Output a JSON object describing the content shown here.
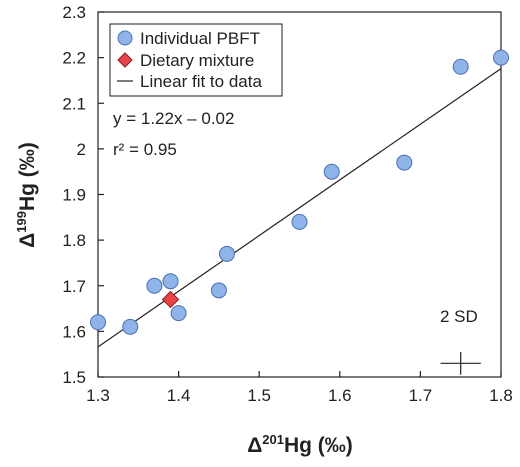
{
  "chart_data": {
    "type": "scatter",
    "xlabel": {
      "prefix": "Δ",
      "sup": "201",
      "rest": "Hg (‰)"
    },
    "ylabel": {
      "prefix": "Δ",
      "sup": "199",
      "rest": "Hg (‰)"
    },
    "xlim": [
      1.3,
      1.8
    ],
    "ylim": [
      1.5,
      2.3
    ],
    "xticks": [
      "1.3",
      "1.4",
      "1.5",
      "1.6",
      "1.7",
      "1.8"
    ],
    "yticks": [
      "1.5",
      "1.6",
      "1.7",
      "1.8",
      "1.9",
      "2",
      "2.1",
      "2.2",
      "2.3"
    ],
    "grid": false,
    "legend_position": "top-left",
    "series": [
      {
        "name": "Individual PBFT",
        "marker": "circle",
        "color": "#8fb4ea",
        "edge": "#4a6fb0",
        "points": [
          [
            1.3,
            1.62
          ],
          [
            1.34,
            1.61
          ],
          [
            1.37,
            1.7
          ],
          [
            1.39,
            1.71
          ],
          [
            1.4,
            1.64
          ],
          [
            1.45,
            1.69
          ],
          [
            1.46,
            1.77
          ],
          [
            1.55,
            1.84
          ],
          [
            1.59,
            1.95
          ],
          [
            1.68,
            1.97
          ],
          [
            1.75,
            2.18
          ],
          [
            1.8,
            2.2
          ]
        ]
      },
      {
        "name": "Dietary mixture",
        "marker": "diamond",
        "color": "#e8454a",
        "edge": "#8b1a1a",
        "points": [
          [
            1.39,
            1.67
          ]
        ]
      }
    ],
    "fit": {
      "name": "Linear fit to data",
      "slope": 1.22,
      "intercept": -0.02,
      "x_range": [
        1.3,
        1.8
      ]
    },
    "annotations": {
      "equation": "y = 1.22x – 0.02",
      "r2": "r² = 0.95",
      "sd_label": "2 SD"
    },
    "error_cross": {
      "x": 1.75,
      "y": 1.53,
      "dx": 0.025,
      "dy": 0.025
    }
  }
}
